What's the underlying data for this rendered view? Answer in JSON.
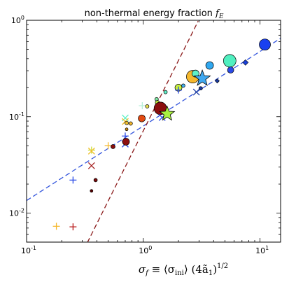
{
  "chart_data": {
    "type": "scatter",
    "title": "non-thermal energy fraction f_E",
    "xlabel": "σ_f ≡ ⟨σ_ini⟩ (4ã_1)^{1/2}",
    "ylabel": "",
    "xscale": "log",
    "yscale": "log",
    "xlim": [
      0.1,
      15
    ],
    "ylim": [
      0.005,
      1
    ],
    "grid": false,
    "x_tick_labels": [
      {
        "value": 0.1,
        "base": "10",
        "exp": "-1"
      },
      {
        "value": 1,
        "base": "10",
        "exp": "0"
      },
      {
        "value": 10,
        "base": "10",
        "exp": "1"
      }
    ],
    "y_tick_labels": [
      {
        "value": 0.01,
        "base": "10",
        "exp": "-2"
      },
      {
        "value": 0.1,
        "base": "10",
        "exp": "-1"
      },
      {
        "value": 1,
        "base": "10",
        "exp": "0"
      }
    ],
    "fit_lines": [
      {
        "color": "#3355dd",
        "dash": "7,4",
        "points": [
          [
            0.1,
            0.0135
          ],
          [
            15,
            0.65
          ]
        ]
      },
      {
        "color": "#8b1a1a",
        "dash": "7,4",
        "points": [
          [
            0.31,
            0.0042
          ],
          [
            2.95,
            0.98
          ]
        ]
      }
    ],
    "points": [
      {
        "x": 0.18,
        "y": 0.0073,
        "marker": "plus",
        "color": "#f5b82e"
      },
      {
        "x": 0.25,
        "y": 0.0072,
        "marker": "plus",
        "color": "#b81818"
      },
      {
        "x": 0.25,
        "y": 0.022,
        "marker": "plus",
        "color": "#2a4ae6"
      },
      {
        "x": 0.36,
        "y": 0.045,
        "marker": "plus",
        "color": "#c8e038"
      },
      {
        "x": 0.36,
        "y": 0.044,
        "marker": "x",
        "color": "#f0c030"
      },
      {
        "x": 0.36,
        "y": 0.031,
        "marker": "x",
        "color": "#a52020"
      },
      {
        "x": 0.36,
        "y": 0.017,
        "marker": "circle",
        "size": 2,
        "color": "#5a0000"
      },
      {
        "x": 0.39,
        "y": 0.022,
        "marker": "circle",
        "size": 2.5,
        "color": "#7a0c0c"
      },
      {
        "x": 0.5,
        "y": 0.05,
        "marker": "plus",
        "color": "#f5b82e"
      },
      {
        "x": 0.55,
        "y": 0.049,
        "marker": "circle",
        "size": 3,
        "color": "#8b0e0e"
      },
      {
        "x": 0.7,
        "y": 0.097,
        "marker": "x",
        "color": "#5ff0c8"
      },
      {
        "x": 0.7,
        "y": 0.089,
        "marker": "x",
        "color": "#f0c030"
      },
      {
        "x": 0.7,
        "y": 0.063,
        "marker": "plus",
        "color": "#2a4ae6"
      },
      {
        "x": 0.7,
        "y": 0.052,
        "marker": "x",
        "color": "#2a4ae6"
      },
      {
        "x": 0.71,
        "y": 0.055,
        "marker": "circle",
        "size": 5,
        "color": "#8b0e0e"
      },
      {
        "x": 0.72,
        "y": 0.086,
        "marker": "circle",
        "size": 2.5,
        "color": "#f0c030"
      },
      {
        "x": 0.72,
        "y": 0.074,
        "marker": "circle",
        "size": 2,
        "color": "#c88a10"
      },
      {
        "x": 0.78,
        "y": 0.085,
        "marker": "circle",
        "size": 2.5,
        "color": "#f5b82e"
      },
      {
        "x": 0.97,
        "y": 0.096,
        "marker": "circle",
        "size": 5,
        "color": "#e24a12"
      },
      {
        "x": 0.98,
        "y": 0.13,
        "marker": "plus",
        "color": "#b8f0d8"
      },
      {
        "x": 1.08,
        "y": 0.128,
        "marker": "circle",
        "size": 2.5,
        "color": "#e8e050"
      },
      {
        "x": 1.3,
        "y": 0.152,
        "marker": "circle",
        "size": 2.5,
        "color": "#7ee8a0"
      },
      {
        "x": 1.32,
        "y": 0.14,
        "marker": "circle",
        "size": 3,
        "color": "#c8f040"
      },
      {
        "x": 1.38,
        "y": 0.127,
        "marker": "circle",
        "size": 6,
        "color": "#f5b82e"
      },
      {
        "x": 1.4,
        "y": 0.122,
        "marker": "circle",
        "size": 9,
        "color": "#8b0e0e"
      },
      {
        "x": 1.45,
        "y": 0.098,
        "marker": "x",
        "color": "#2a4ae6"
      },
      {
        "x": 1.55,
        "y": 0.18,
        "marker": "circle",
        "size": 2.5,
        "color": "#5ff0c8"
      },
      {
        "x": 1.6,
        "y": 0.107,
        "marker": "star",
        "size": 11,
        "color": "#a8f040"
      },
      {
        "x": 2.0,
        "y": 0.2,
        "marker": "circle",
        "size": 5,
        "color": "#c8f040"
      },
      {
        "x": 2.0,
        "y": 0.189,
        "marker": "plus",
        "color": "#2a4ae6"
      },
      {
        "x": 2.2,
        "y": 0.21,
        "marker": "circle",
        "size": 2.5,
        "color": "#40b0f0"
      },
      {
        "x": 2.65,
        "y": 0.26,
        "marker": "circle",
        "size": 9,
        "color": "#f5b82e"
      },
      {
        "x": 2.8,
        "y": 0.28,
        "marker": "circle",
        "size": 5,
        "color": "#5ff0c8"
      },
      {
        "x": 2.85,
        "y": 0.18,
        "marker": "x",
        "color": "#1a3aa0"
      },
      {
        "x": 3.1,
        "y": 0.197,
        "marker": "circle",
        "size": 2.5,
        "color": "#1a3aa0"
      },
      {
        "x": 3.2,
        "y": 0.249,
        "marker": "star",
        "size": 12,
        "color": "#40a8f0"
      },
      {
        "x": 3.7,
        "y": 0.34,
        "marker": "circle",
        "size": 5.5,
        "color": "#30a8f0"
      },
      {
        "x": 4.3,
        "y": 0.235,
        "marker": "diamond",
        "size": 3,
        "color": "#1a3aa0"
      },
      {
        "x": 5.5,
        "y": 0.38,
        "marker": "circle",
        "size": 9,
        "color": "#50f0c0"
      },
      {
        "x": 5.6,
        "y": 0.305,
        "marker": "circle",
        "size": 4.5,
        "color": "#2a4ae6"
      },
      {
        "x": 7.5,
        "y": 0.365,
        "marker": "diamond",
        "size": 4,
        "color": "#1a40d8"
      },
      {
        "x": 11.0,
        "y": 0.56,
        "marker": "circle",
        "size": 8,
        "color": "#1a40f0"
      }
    ]
  }
}
